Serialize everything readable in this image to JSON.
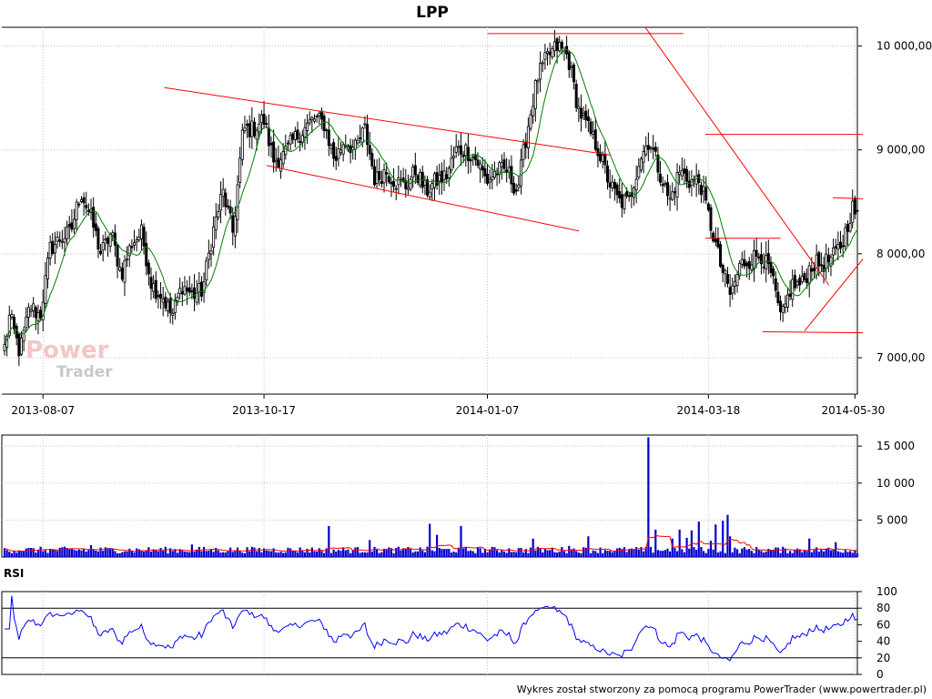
{
  "title": "LPP",
  "footer": "Wykres został stworzony za pomocą programu PowerTrader (www.powertrader.pl)",
  "watermark": {
    "line1": "Power",
    "line2": "Trader"
  },
  "rsi_label": "RSI",
  "colors": {
    "up_candle": "#ffffff",
    "down_candle": "#000000",
    "ma": "#008000",
    "trendline": "#ff0000",
    "volume": "#0000cc",
    "volume_ma": "#ff0000",
    "rsi": "#0000ff",
    "grid": "#c0c0c0"
  },
  "chart_data": [
    {
      "type": "candlestick",
      "name": "price",
      "x_tick_labels": [
        "2013-08-07",
        "2013-10-17",
        "2014-01-07",
        "2014-03-18",
        "2014-05-30"
      ],
      "y_tick_labels": [
        "7 000,00",
        "8 000,00",
        "9 000,00",
        "10 000,00"
      ],
      "y_ticks": [
        7000,
        8000,
        9000,
        10000
      ],
      "ylim": [
        6650,
        10180
      ],
      "grid": true,
      "anchors": [
        [
          6800,
          7400
        ],
        [
          7050,
          7500
        ],
        [
          7400,
          8050
        ],
        [
          8150,
          8200
        ],
        [
          8600,
          8350
        ],
        [
          8000,
          8200
        ],
        [
          7800,
          8100
        ],
        [
          8200,
          7700
        ],
        [
          7600,
          7400
        ],
        [
          7700,
          7600
        ],
        [
          7650,
          8200
        ],
        [
          8600,
          8200
        ],
        [
          9200,
          9200
        ],
        [
          9300,
          8900
        ],
        [
          8950,
          9100
        ],
        [
          9200,
          9300
        ],
        [
          9250,
          8900
        ],
        [
          9100,
          9000
        ],
        [
          9200,
          8700
        ],
        [
          8800,
          8700
        ],
        [
          8650,
          8800
        ],
        [
          8600,
          8700
        ],
        [
          8750,
          9000
        ],
        [
          9000,
          8900
        ],
        [
          8700,
          8800
        ],
        [
          8800,
          8600
        ],
        [
          9200,
          9700
        ],
        [
          9900,
          10000
        ],
        [
          9900,
          9400
        ],
        [
          9200,
          9000
        ],
        [
          8700,
          8500
        ],
        [
          8500,
          8900
        ],
        [
          9100,
          8800
        ],
        [
          8500,
          8800
        ],
        [
          8700,
          8700
        ],
        [
          8300,
          7900
        ],
        [
          7600,
          7900
        ],
        [
          7950,
          8000
        ],
        [
          7800,
          7350
        ],
        [
          7700,
          7700
        ],
        [
          7900,
          7900
        ],
        [
          7950,
          8100
        ],
        [
          8450,
          8250
        ]
      ],
      "ma_period": 10,
      "trendlines": [
        [
          [
            "2013-09-15",
            9600
          ],
          [
            "2014-02-15",
            8950
          ]
        ],
        [
          [
            "2013-10-18",
            8850
          ],
          [
            "2014-02-05",
            8220
          ]
        ],
        [
          [
            "2014-01-07",
            10120
          ],
          [
            "2014-03-10",
            10120
          ]
        ],
        [
          [
            "2014-02-26",
            10180
          ],
          [
            "2014-05-17",
            7700
          ]
        ],
        [
          [
            "2014-03-17",
            9150
          ],
          [
            "2014-06-03",
            9150
          ]
        ],
        [
          [
            "2014-03-17",
            8150
          ],
          [
            "2014-04-23",
            8150
          ]
        ],
        [
          [
            "2014-04-14",
            7250
          ],
          [
            "2014-06-03",
            7240
          ]
        ],
        [
          [
            "2014-05-05",
            7260
          ],
          [
            "2014-06-03",
            7950
          ]
        ],
        [
          [
            "2014-05-19",
            8540
          ],
          [
            "2014-06-03",
            8530
          ]
        ]
      ]
    },
    {
      "type": "bar",
      "name": "volume",
      "y_tick_labels": [
        "5 000",
        "10 000",
        "15 000"
      ],
      "y_ticks": [
        5000,
        10000,
        15000
      ],
      "ylim": [
        0,
        16500
      ],
      "spikes": [
        [
          36,
          1600
        ],
        [
          78,
          1700
        ],
        [
          135,
          4200
        ],
        [
          152,
          2300
        ],
        [
          177,
          4500
        ],
        [
          180,
          3000
        ],
        [
          190,
          4200
        ],
        [
          220,
          2500
        ],
        [
          235,
          1500
        ],
        [
          243,
          2800
        ],
        [
          268,
          16200
        ],
        [
          271,
          3700
        ],
        [
          278,
          2500
        ],
        [
          281,
          3700
        ],
        [
          284,
          2600
        ],
        [
          286,
          3600
        ],
        [
          289,
          4800
        ],
        [
          294,
          2200
        ],
        [
          296,
          4400
        ],
        [
          299,
          4900
        ],
        [
          301,
          5700
        ],
        [
          302,
          2800
        ],
        [
          335,
          2500
        ],
        [
          346,
          2000
        ]
      ],
      "ma_period": 10
    },
    {
      "type": "line",
      "name": "RSI",
      "y_tick_labels": [
        "0",
        "20",
        "40",
        "60",
        "80",
        "100"
      ],
      "y_ticks": [
        0,
        20,
        40,
        60,
        80,
        100
      ],
      "ylim": [
        0,
        100
      ],
      "reference_lines": [
        20,
        80
      ]
    }
  ]
}
